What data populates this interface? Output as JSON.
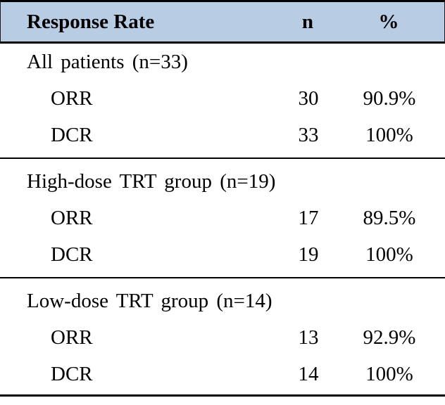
{
  "chart_data": {
    "type": "table",
    "title": "Response Rate",
    "columns": {
      "label": "Response Rate",
      "n": "n",
      "pct": "%"
    },
    "sections": [
      {
        "group": "All patients (n=33)",
        "rows": [
          {
            "label": "ORR",
            "n": "30",
            "pct": "90.9%"
          },
          {
            "label": "DCR",
            "n": "33",
            "pct": "100%"
          }
        ]
      },
      {
        "group": "High-dose TRT group (n=19)",
        "rows": [
          {
            "label": "ORR",
            "n": "17",
            "pct": "89.5%"
          },
          {
            "label": "DCR",
            "n": "19",
            "pct": "100%"
          }
        ]
      },
      {
        "group": "Low-dose TRT group (n=14)",
        "rows": [
          {
            "label": "ORR",
            "n": "13",
            "pct": "92.9%"
          },
          {
            "label": "DCR",
            "n": "14",
            "pct": "100%"
          }
        ]
      }
    ],
    "layout": {
      "legend": "none",
      "grid": "off",
      "header_background": "#b8cce4",
      "border_color": "#000000"
    }
  },
  "colors": {
    "header_bg": "#b8cce4",
    "border": "#000000",
    "text": "#000000",
    "background": "#ffffff"
  }
}
